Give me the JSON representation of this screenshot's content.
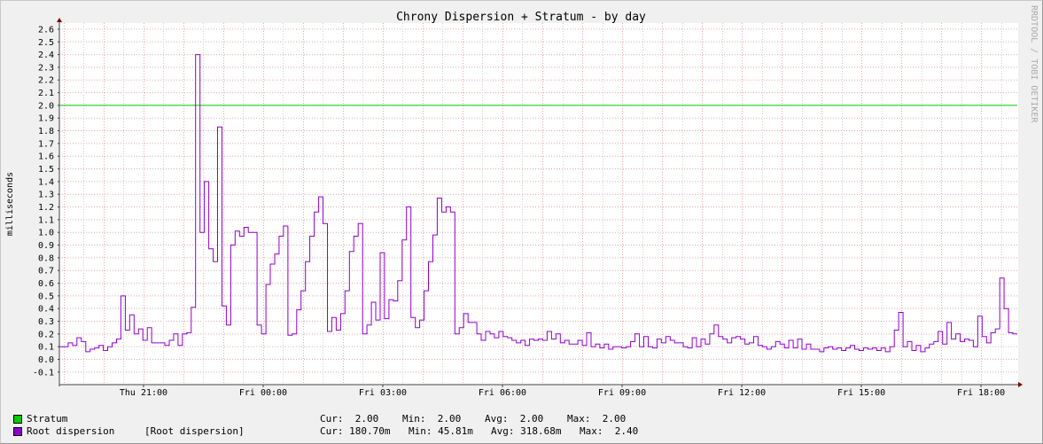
{
  "chart_data": {
    "type": "line",
    "title": "Chrony Dispersion + Stratum - by day",
    "ylabel": "milliseconds",
    "xlabel": "",
    "watermark": "RRDTOOL / TOBI OETIKER",
    "ylim": [
      -0.15,
      2.65
    ],
    "yticks": [
      -0.1,
      0.0,
      0.1,
      0.2,
      0.3,
      0.4,
      0.5,
      0.6,
      0.7,
      0.8,
      0.9,
      1.0,
      1.1,
      1.2,
      1.3,
      1.4,
      1.5,
      1.6,
      1.7,
      1.8,
      1.9,
      2.0,
      2.1,
      2.2,
      2.3,
      2.4,
      2.5,
      2.6
    ],
    "x_range_hours": [
      -2.11,
      21.91
    ],
    "xticks": [
      {
        "label": "Thu 21:00",
        "hour": 0
      },
      {
        "label": "Fri 00:00",
        "hour": 3
      },
      {
        "label": "Fri 03:00",
        "hour": 6
      },
      {
        "label": "Fri 06:00",
        "hour": 9
      },
      {
        "label": "Fri 09:00",
        "hour": 12
      },
      {
        "label": "Fri 12:00",
        "hour": 15
      },
      {
        "label": "Fri 15:00",
        "hour": 18
      },
      {
        "label": "Fri 18:00",
        "hour": 21
      }
    ],
    "grid": true,
    "series": [
      {
        "name": "Stratum",
        "color": "#00cc00",
        "constant": 2.0
      },
      {
        "name": "Root dispersion",
        "color": "#8f00cc",
        "values": [
          0.1,
          0.1,
          0.13,
          0.11,
          0.17,
          0.14,
          0.06,
          0.08,
          0.09,
          0.11,
          0.07,
          0.1,
          0.13,
          0.16,
          0.5,
          0.23,
          0.35,
          0.2,
          0.24,
          0.15,
          0.25,
          0.13,
          0.13,
          0.13,
          0.11,
          0.15,
          0.2,
          0.11,
          0.2,
          0.21,
          0.41,
          2.4,
          1.0,
          1.4,
          0.87,
          0.77,
          1.83,
          0.42,
          0.27,
          0.9,
          1.01,
          0.97,
          1.04,
          1.0,
          1.0,
          0.27,
          0.2,
          0.59,
          0.75,
          0.83,
          0.97,
          1.05,
          0.19,
          0.2,
          0.39,
          0.54,
          0.77,
          0.97,
          1.16,
          1.28,
          1.07,
          0.22,
          0.33,
          0.23,
          0.36,
          0.54,
          0.85,
          0.97,
          1.07,
          0.2,
          0.27,
          0.45,
          0.31,
          0.84,
          0.32,
          0.47,
          0.46,
          0.62,
          0.94,
          1.2,
          0.33,
          0.25,
          0.31,
          0.54,
          0.77,
          0.98,
          1.27,
          1.16,
          1.2,
          1.16,
          0.2,
          0.25,
          0.36,
          0.29,
          0.29,
          0.2,
          0.15,
          0.22,
          0.2,
          0.17,
          0.22,
          0.18,
          0.17,
          0.15,
          0.13,
          0.15,
          0.11,
          0.16,
          0.15,
          0.16,
          0.15,
          0.22,
          0.16,
          0.2,
          0.13,
          0.15,
          0.12,
          0.12,
          0.15,
          0.11,
          0.21,
          0.1,
          0.12,
          0.09,
          0.12,
          0.08,
          0.1,
          0.1,
          0.09,
          0.1,
          0.14,
          0.2,
          0.1,
          0.18,
          0.1,
          0.09,
          0.16,
          0.13,
          0.18,
          0.15,
          0.13,
          0.13,
          0.1,
          0.09,
          0.17,
          0.1,
          0.16,
          0.12,
          0.2,
          0.27,
          0.18,
          0.16,
          0.13,
          0.17,
          0.18,
          0.16,
          0.12,
          0.13,
          0.18,
          0.11,
          0.1,
          0.08,
          0.1,
          0.14,
          0.12,
          0.09,
          0.15,
          0.09,
          0.16,
          0.08,
          0.12,
          0.08,
          0.08,
          0.06,
          0.09,
          0.1,
          0.08,
          0.09,
          0.07,
          0.09,
          0.11,
          0.08,
          0.07,
          0.09,
          0.08,
          0.09,
          0.07,
          0.09,
          0.06,
          0.1,
          0.23,
          0.37,
          0.1,
          0.14,
          0.07,
          0.11,
          0.06,
          0.09,
          0.12,
          0.14,
          0.22,
          0.12,
          0.29,
          0.16,
          0.2,
          0.14,
          0.16,
          0.15,
          0.1,
          0.34,
          0.18,
          0.13,
          0.21,
          0.24,
          0.64,
          0.4,
          0.21,
          0.2
        ]
      }
    ],
    "legend": [
      {
        "name": "Stratum",
        "extra": "",
        "cur": "Cur:  2.00",
        "min": "Min:  2.00",
        "avg": "Avg:  2.00",
        "max": "Max:  2.00"
      },
      {
        "name": "Root dispersion",
        "extra": "[Root dispersion]",
        "cur": "Cur: 180.70m",
        "min": "Min: 45.81m",
        "avg": "Avg: 318.68m",
        "max": "Max:  2.40"
      }
    ]
  }
}
